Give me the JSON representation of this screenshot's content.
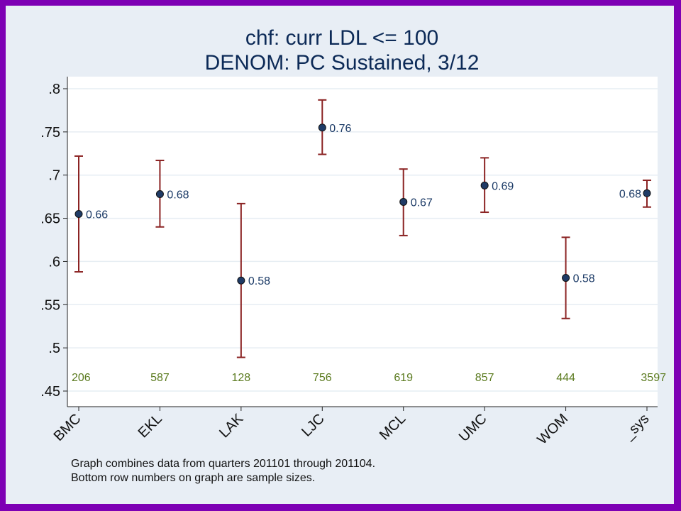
{
  "chart_data": {
    "type": "scatter",
    "title": [
      "chf: curr LDL <= 100",
      "DENOM: PC Sustained, 3/12"
    ],
    "categories": [
      "BMC",
      "EKL",
      "LAK",
      "LJC",
      "MCL",
      "UMC",
      "WOM",
      "_sys"
    ],
    "values": [
      0.655,
      0.678,
      0.578,
      0.755,
      0.669,
      0.688,
      0.581,
      0.679
    ],
    "value_labels": [
      "0.66",
      "0.68",
      "0.58",
      "0.76",
      "0.67",
      "0.69",
      "0.58",
      "0.68"
    ],
    "ci_low": [
      0.588,
      0.64,
      0.489,
      0.724,
      0.63,
      0.657,
      0.534,
      0.663
    ],
    "ci_high": [
      0.722,
      0.717,
      0.667,
      0.787,
      0.707,
      0.72,
      0.628,
      0.694
    ],
    "sample_sizes": [
      "206",
      "587",
      "128",
      "756",
      "619",
      "857",
      "444",
      "3597"
    ],
    "yticks": [
      ".45",
      ".5",
      ".55",
      ".6",
      ".65",
      ".7",
      ".75",
      ".8"
    ],
    "ylim": [
      0.45,
      0.8
    ],
    "grid": true,
    "colors": {
      "point": "#1f3b66",
      "errorbar": "#8b2323",
      "sample_text": "#5a7a1e"
    },
    "notes": [
      "Graph combines data from quarters 201101 through 201104.",
      "Bottom row numbers on graph are sample sizes."
    ]
  }
}
